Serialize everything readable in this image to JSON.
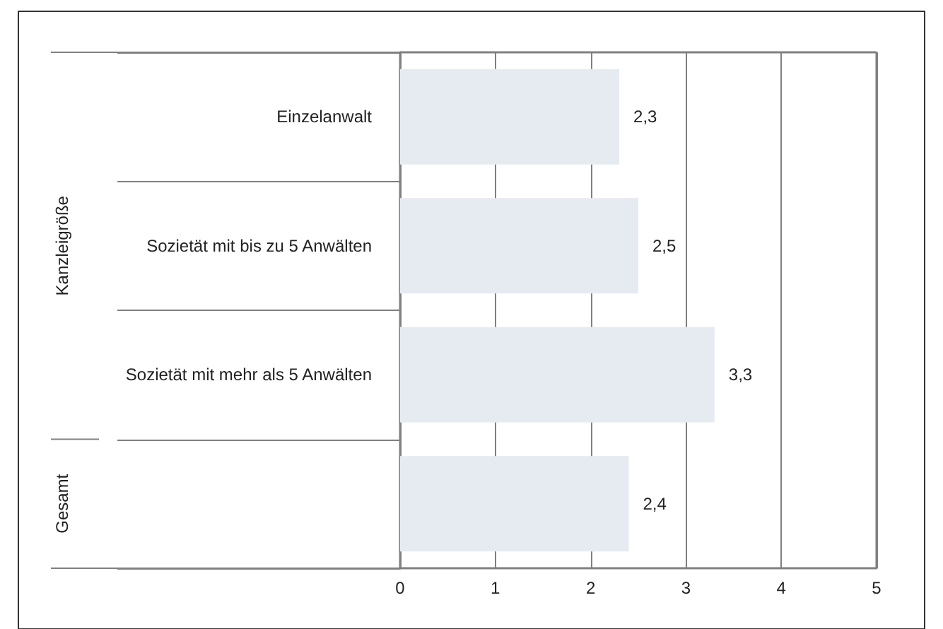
{
  "chart_data": {
    "type": "bar",
    "orientation": "horizontal",
    "categories": [
      "Einzelanwalt",
      "Sozietät mit bis zu 5 Anwälten",
      "Sozietät mit mehr als 5 Anwälten",
      null
    ],
    "values": [
      2.3,
      2.5,
      3.3,
      2.4
    ],
    "value_labels": [
      "2,3",
      "2,5",
      "3,3",
      "2,4"
    ],
    "color": "#e6ebf2",
    "xlim": [
      0,
      5
    ],
    "xticks": [
      0,
      1,
      2,
      3,
      4,
      5
    ],
    "grid": "x",
    "annotations": [
      "Kanzleigröße",
      "Gesamt"
    ]
  }
}
